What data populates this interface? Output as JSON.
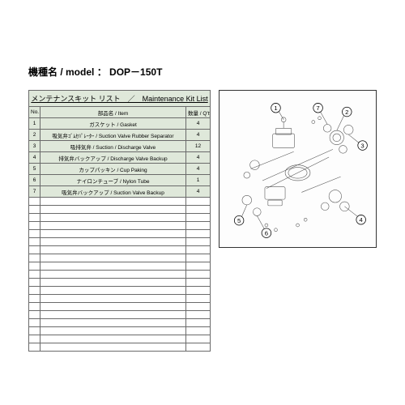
{
  "header": {
    "model_label": "機種名 / model",
    "separator": "：",
    "model_value": "DOP－150T"
  },
  "table": {
    "title": "メンテナンスキット リスト　／　Maintenance Kit  List",
    "columns": {
      "no": "No.",
      "item": "部品名 / Item",
      "qty": "数量 / Q'ty"
    },
    "rows": [
      {
        "no": "1",
        "item": "ガスケット / Gasket",
        "qty": "4"
      },
      {
        "no": "2",
        "item": "吸気弁ｺﾞﾑｾﾊﾟﾚｰﾀｰ / Suction Valve Rubber Separator",
        "qty": "4"
      },
      {
        "no": "3",
        "item": "吸排気弁 / Suction / Discharge Valve",
        "qty": "12"
      },
      {
        "no": "4",
        "item": "排気弁バックアップ / Discharge Valve Backup",
        "qty": "4"
      },
      {
        "no": "5",
        "item": "カップパッキン / Cup Paking",
        "qty": "4"
      },
      {
        "no": "6",
        "item": "ナイロンチューブ / Nylon Tube",
        "qty": "1"
      },
      {
        "no": "7",
        "item": "吸気弁バックアップ / Suction Valve Backup",
        "qty": "4"
      }
    ],
    "empty_row_count": 19
  },
  "diagram": {
    "callouts": [
      "1",
      "2",
      "3",
      "4",
      "5",
      "6",
      "7"
    ],
    "stroke": "#444444",
    "callout_fill": "#ffffff",
    "callout_stroke": "#000000"
  },
  "colors": {
    "header_bg": "#dfe8da",
    "border": "#6a6a6a",
    "page_bg": "#ffffff"
  }
}
